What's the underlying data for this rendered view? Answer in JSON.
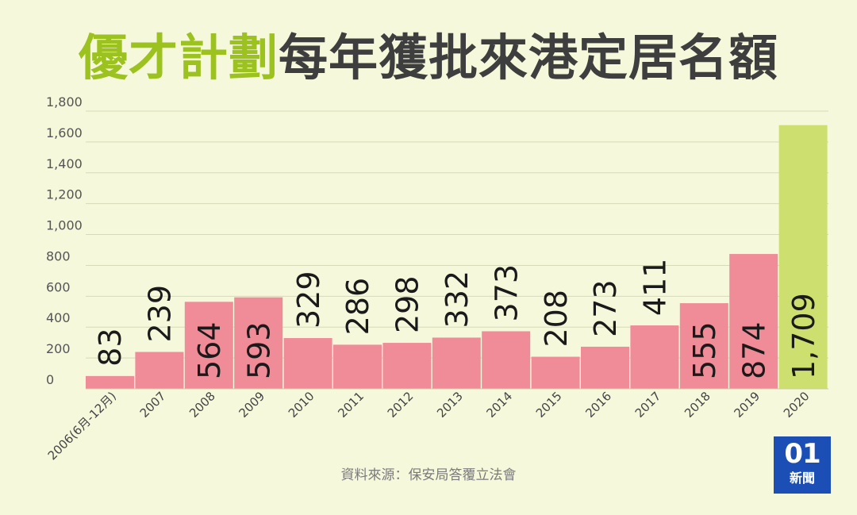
{
  "title": {
    "highlight": "優才計劃",
    "rest": "每年獲批來港定居名額"
  },
  "source": "資料來源：保安局答覆立法會",
  "logo": {
    "number": "01",
    "text": "新聞"
  },
  "colors": {
    "background": "#f6f8dc",
    "bar": "#f08c97",
    "bar_highlight": "#cde06f",
    "title_highlight": "#9cc21f",
    "title_text": "#3e3e3e"
  },
  "chart_data": {
    "type": "bar",
    "title": "優才計劃每年獲批來港定居名額",
    "categories": [
      "2006(6月-12月)",
      "2007",
      "2008",
      "2009",
      "2010",
      "2011",
      "2012",
      "2013",
      "2014",
      "2015",
      "2016",
      "2017",
      "2018",
      "2019",
      "2020"
    ],
    "values": [
      83,
      239,
      564,
      593,
      329,
      286,
      298,
      332,
      373,
      208,
      273,
      411,
      555,
      874,
      1709
    ],
    "value_labels": [
      "83",
      "239",
      "564",
      "593",
      "329",
      "286",
      "298",
      "332",
      "373",
      "208",
      "273",
      "411",
      "555",
      "874",
      "1,709"
    ],
    "yticks": [
      "0",
      "200",
      "400",
      "600",
      "800",
      "1,000",
      "1,200",
      "1,400",
      "1,600",
      "1,800"
    ],
    "ylim": [
      0,
      1800
    ],
    "highlight_index": 14,
    "grid": true
  }
}
